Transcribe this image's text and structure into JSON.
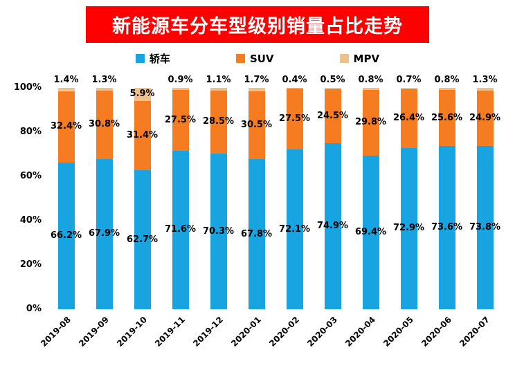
{
  "chart_data": {
    "type": "bar",
    "stacked": true,
    "title": "新能源车分车型级别销量占比走势",
    "categories": [
      "2019-08",
      "2019-09",
      "2019-10",
      "2019-11",
      "2019-12",
      "2020-01",
      "2020-02",
      "2020-03",
      "2020-04",
      "2020-05",
      "2020-06",
      "2020-07"
    ],
    "series": [
      {
        "name": "轿车",
        "color": "#18a4e0",
        "values": [
          66.2,
          67.9,
          62.7,
          71.6,
          70.3,
          67.8,
          72.1,
          74.9,
          69.4,
          72.9,
          73.6,
          73.8
        ]
      },
      {
        "name": "SUV",
        "color": "#f57c21",
        "values": [
          32.4,
          30.8,
          31.4,
          27.5,
          28.5,
          30.5,
          27.5,
          24.5,
          29.8,
          26.4,
          25.6,
          24.9
        ]
      },
      {
        "name": "MPV",
        "color": "#eec08a",
        "values": [
          1.4,
          1.3,
          5.9,
          0.9,
          1.1,
          1.7,
          0.4,
          0.5,
          0.8,
          0.7,
          0.8,
          1.3
        ]
      }
    ],
    "xlabel": "",
    "ylabel": "",
    "unit": "%",
    "ylim": [
      0,
      100
    ],
    "yticks": [
      "0%",
      "20%",
      "40%",
      "60%",
      "80%",
      "100%"
    ],
    "legend_position": "top",
    "grid": false
  },
  "colors": {
    "title_bg": "#fe0000",
    "title_text": "#ffffff",
    "label_text": "#000000",
    "background": "#ffffff"
  }
}
